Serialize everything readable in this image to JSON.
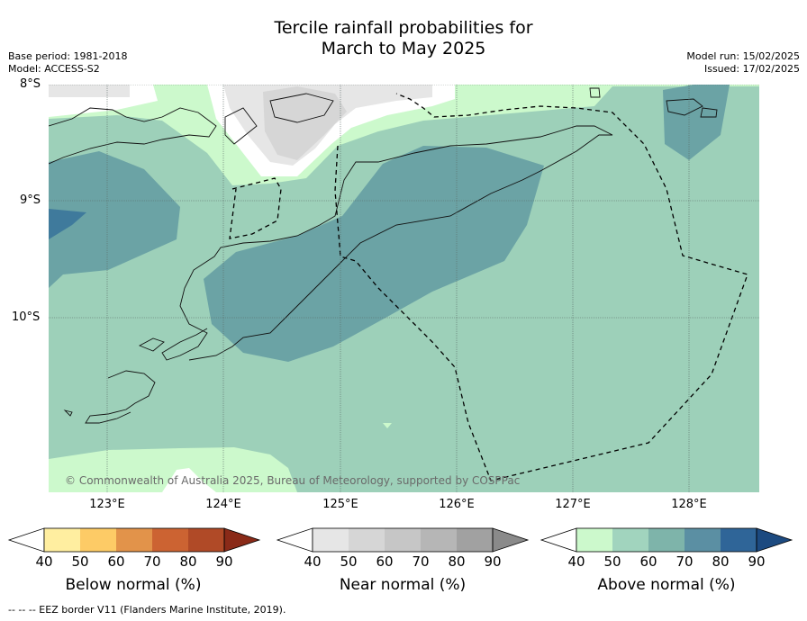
{
  "title": {
    "line1": "Tercile rainfall probabilities for",
    "line2": "March to May 2025"
  },
  "meta": {
    "base_period": "Base period: 1981-2018",
    "model": "Model: ACCESS-S2",
    "model_run": "Model run: 15/02/2025",
    "issued": "Issued: 17/02/2025"
  },
  "map": {
    "lat_labels": [
      "8°S",
      "9°S",
      "10°S"
    ],
    "lon_labels": [
      "123°E",
      "124°E",
      "125°E",
      "126°E",
      "127°E",
      "128°E"
    ],
    "copyright": "© Commonwealth of Australia 2025, Bureau of Meteorology, supported by COSPPac",
    "colors": {
      "ocean_above_50": "#9dd0b9",
      "above_40": "#ccf9cc",
      "above_60": "#6ba3a5",
      "above_70": "#3f7a9c",
      "near_40": "#e6e6e6",
      "near_50": "#d6d6d6"
    }
  },
  "colorbars": [
    {
      "title": "Below normal (%)",
      "ticks": [
        "40",
        "50",
        "60",
        "70",
        "80",
        "90"
      ],
      "colors": [
        "#ffffff",
        "#ffeea0",
        "#fdcb66",
        "#e2934a",
        "#cc6332",
        "#b04a27",
        "#8a2a18"
      ]
    },
    {
      "title": "Near normal (%)",
      "ticks": [
        "40",
        "50",
        "60",
        "70",
        "80",
        "90"
      ],
      "colors": [
        "#ffffff",
        "#e6e6e6",
        "#d6d6d6",
        "#c6c6c6",
        "#b6b6b6",
        "#a1a1a1",
        "#8a8a8a"
      ]
    },
    {
      "title": "Above normal (%)",
      "ticks": [
        "40",
        "50",
        "60",
        "70",
        "80",
        "90"
      ],
      "colors": [
        "#ffffff",
        "#ccf9cc",
        "#a1d4be",
        "#7eb4aa",
        "#5b8fa3",
        "#2f6598",
        "#1c4a80"
      ]
    }
  ],
  "footer": "--  --  -- EEZ border V11 (Flanders Marine Institute, 2019)."
}
